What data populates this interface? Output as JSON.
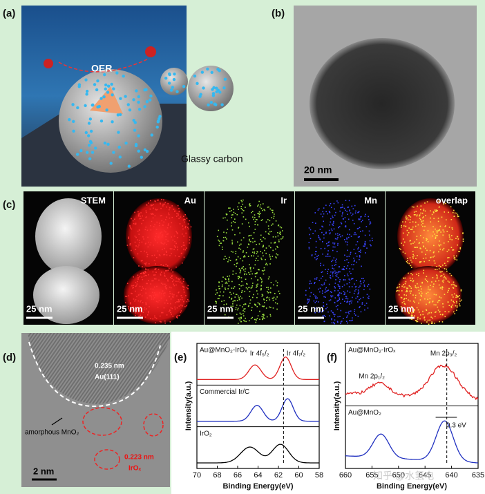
{
  "panels": {
    "a": {
      "label": "(a)",
      "reaction": "OER",
      "substrate": "Glassy carbon"
    },
    "b": {
      "label": "(b)",
      "scale": "20 nm"
    },
    "c": {
      "label": "(c)",
      "maps": [
        {
          "title": "STEM",
          "scale": "25 nm"
        },
        {
          "title": "Au",
          "scale": "25 nm"
        },
        {
          "title": "Ir",
          "scale": "25 nm"
        },
        {
          "title": "Mn",
          "scale": "25 nm"
        },
        {
          "title": "overlap",
          "scale": "25 nm"
        }
      ]
    },
    "d": {
      "label": "(d)",
      "spacing_au": "0.235 nm",
      "plane_au": "Au(111)",
      "amorphous": "amorphous MnO₂",
      "spacing_ir": "0.223 nm",
      "phase_ir": "IrOₓ",
      "scale": "2 nm"
    },
    "e": {
      "label": "(e)",
      "xlabel": "Binding Energy(eV)",
      "ylabel": "Intensity(a.u.)",
      "xlim": [
        70,
        58
      ],
      "xticks": [
        70,
        68,
        66,
        64,
        62,
        60,
        58
      ],
      "curves": [
        "Au@MnO₂-IrOₓ",
        "Commercial Ir/C",
        "IrO₂"
      ],
      "peak1": "Ir 4f₅/₂",
      "peak2": "Ir 4f₇/₂"
    },
    "f": {
      "label": "(f)",
      "xlabel": "Binding Energy(eV)",
      "ylabel": "Intensity(a.u.)",
      "xlim": [
        660,
        635
      ],
      "xticks": [
        660,
        655,
        650,
        645,
        640,
        635
      ],
      "curves": [
        "Au@MnO₂-IrOₓ",
        "Au@MnO₂"
      ],
      "peak1": "Mn 2p₃/₂",
      "peak2": "Mn 2p₁/₂",
      "shift": "0.3 eV"
    }
  },
  "watermark": "知乎 @水氢电"
}
